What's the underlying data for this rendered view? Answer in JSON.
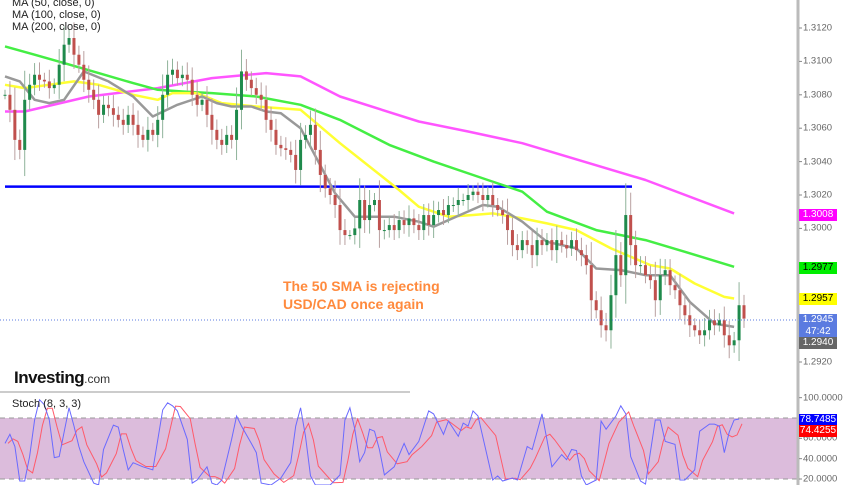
{
  "legend": {
    "ma50": "MA (50, close, 0)",
    "ma100": "MA (100, close, 0)",
    "ma200": "MA (200, close, 0)"
  },
  "annotation": {
    "line1": "The 50 SMA is rejecting",
    "line2": "USD/CAD once again"
  },
  "logo": {
    "name": "Investing",
    "suffix": ".com"
  },
  "stoch_label": "Stoch (8, 3, 3)",
  "price_ticks": [
    "1.3120",
    "1.3100",
    "1.3080",
    "1.3060",
    "1.3040",
    "1.3020",
    "1.3000",
    "1.2920"
  ],
  "price_labels": [
    {
      "text": "1.3008",
      "bg": "#ff00ff",
      "fg": "#ffffff"
    },
    {
      "text": "1.2977",
      "bg": "#00ee00",
      "fg": "#000000"
    },
    {
      "text": "1.2957",
      "bg": "#ffff00",
      "fg": "#000000"
    },
    {
      "text": "1.2945",
      "bg": "#5b7be0",
      "fg": "#ffffff"
    },
    {
      "text": "47:42",
      "bg": "#5b7be0",
      "fg": "#ffffff"
    },
    {
      "text": "1.2940",
      "bg": "#666666",
      "fg": "#ffffff"
    }
  ],
  "stoch_ticks": [
    "100.0000",
    "60.0000",
    "40.0000",
    "20.0000"
  ],
  "stoch_labels": [
    {
      "text": "78.7485",
      "bg": "#0000ff",
      "fg": "#ffffff"
    },
    {
      "text": "74.4255",
      "bg": "#ff0000",
      "fg": "#ffffff"
    }
  ],
  "chart_data": [
    {
      "type": "candlestick",
      "instrument": "USD/CAD",
      "ylim": [
        1.2913,
        1.3137
      ],
      "last_price": 1.2945,
      "horizontal_line": {
        "price": 1.3025,
        "color": "#0000ff"
      },
      "colors": {
        "up": "#1f8a4c",
        "down": "#c0504d",
        "ma50": "#ffff33",
        "ma100": "#44ee44",
        "ma200": "#ff55ff",
        "fast_ma": "#999999"
      },
      "closes": [
        1.308,
        1.3071,
        1.3053,
        1.3047,
        1.3077,
        1.3086,
        1.3092,
        1.3089,
        1.3088,
        1.3084,
        1.3086,
        1.3098,
        1.311,
        1.3114,
        1.3104,
        1.3098,
        1.3089,
        1.3083,
        1.3077,
        1.3068,
        1.3074,
        1.3072,
        1.3068,
        1.3065,
        1.3062,
        1.3068,
        1.3062,
        1.3056,
        1.3053,
        1.3059,
        1.3056,
        1.3065,
        1.308,
        1.3092,
        1.3095,
        1.309,
        1.3092,
        1.3089,
        1.308,
        1.3074,
        1.3077,
        1.3068,
        1.3059,
        1.3053,
        1.305,
        1.3056,
        1.3053,
        1.3071,
        1.3094,
        1.3089,
        1.3084,
        1.308,
        1.3077,
        1.3065,
        1.3059,
        1.305,
        1.3048,
        1.3047,
        1.3044,
        1.3035,
        1.3053,
        1.3056,
        1.3062,
        1.3047,
        1.3032,
        1.3024,
        1.302,
        1.3014,
        1.2999,
        1.2996,
        1.2996,
        1.3,
        1.3017,
        1.3005,
        1.3014,
        1.3017,
        1.2999,
        1.2999,
        1.3002,
        1.2999,
        1.3005,
        1.3002,
        1.3006,
        1.3002,
        1.2999,
        1.3008,
        1.3002,
        1.3008,
        1.3011,
        1.3008,
        1.3014,
        1.3014,
        1.3017,
        1.3017,
        1.302,
        1.3022,
        1.302,
        1.3017,
        1.302,
        1.3014,
        1.3011,
        1.3008,
        1.2999,
        1.299,
        1.2987,
        1.2993,
        1.299,
        1.2984,
        1.2993,
        1.299,
        1.2993,
        1.2987,
        1.2993,
        1.299,
        1.2988,
        1.2993,
        1.2987,
        1.2984,
        1.2978,
        1.2957,
        1.2951,
        1.2942,
        1.2939,
        1.296,
        1.2984,
        1.2972,
        1.3008,
        1.299,
        1.2978,
        1.2978,
        1.2972,
        1.2969,
        1.2957,
        1.2972,
        1.2975,
        1.2966,
        1.2963,
        1.2954,
        1.2948,
        1.2942,
        1.2939,
        1.2936,
        1.2939,
        1.2945,
        1.2942,
        1.2945,
        1.2936,
        1.293,
        1.2933,
        1.2954,
        1.2946
      ],
      "moving_averages": [
        {
          "name": "MA (200, close, 0)",
          "key": "ma200",
          "points": [
            [
              0,
              1.307
            ],
            [
              4,
              1.307
            ],
            [
              17,
              1.3079
            ],
            [
              31,
              1.3084
            ],
            [
              42,
              1.309
            ],
            [
              53,
              1.3093
            ],
            [
              60,
              1.3091
            ],
            [
              68,
              1.3079
            ],
            [
              84,
              1.3064
            ],
            [
              94,
              1.3058
            ],
            [
              105,
              1.3051
            ],
            [
              130,
              1.3029
            ],
            [
              148,
              1.3009
            ]
          ]
        },
        {
          "name": "MA (100, close, 0)",
          "key": "ma100",
          "points": [
            [
              0,
              1.3109
            ],
            [
              6,
              1.3104
            ],
            [
              12,
              1.3099
            ],
            [
              19,
              1.3093
            ],
            [
              26,
              1.3087
            ],
            [
              31,
              1.3083
            ],
            [
              36,
              1.3082
            ],
            [
              42,
              1.3081
            ],
            [
              51,
              1.3079
            ],
            [
              60,
              1.3074
            ],
            [
              68,
              1.3065
            ],
            [
              78,
              1.305
            ],
            [
              87,
              1.304
            ],
            [
              98,
              1.3029
            ],
            [
              105,
              1.3022
            ],
            [
              110,
              1.301
            ],
            [
              120,
              1.2999
            ],
            [
              130,
              1.2993
            ],
            [
              138,
              1.2986
            ],
            [
              148,
              1.2977
            ]
          ]
        },
        {
          "name": "MA (50, close, 0)",
          "key": "ma50",
          "points": [
            [
              0,
              1.3086
            ],
            [
              4,
              1.3084
            ],
            [
              9,
              1.3086
            ],
            [
              14,
              1.3088
            ],
            [
              19,
              1.3086
            ],
            [
              26,
              1.308
            ],
            [
              31,
              1.3077
            ],
            [
              34,
              1.3081
            ],
            [
              39,
              1.3081
            ],
            [
              44,
              1.3075
            ],
            [
              51,
              1.3073
            ],
            [
              60,
              1.3071
            ],
            [
              68,
              1.3051
            ],
            [
              74,
              1.3037
            ],
            [
              80,
              1.3023
            ],
            [
              84,
              1.3013
            ],
            [
              90,
              1.3007
            ],
            [
              95,
              1.3008
            ],
            [
              99,
              1.3009
            ],
            [
              105,
              1.3006
            ],
            [
              110,
              1.3003
            ],
            [
              116,
              1.2999
            ],
            [
              123,
              1.2988
            ],
            [
              131,
              1.2978
            ],
            [
              135,
              1.2976
            ],
            [
              140,
              1.2967
            ],
            [
              146,
              1.2959
            ],
            [
              148,
              1.2958
            ]
          ]
        },
        {
          "key": "fast_ma",
          "points": [
            [
              0,
              1.3091
            ],
            [
              3,
              1.3088
            ],
            [
              6,
              1.3077
            ],
            [
              9,
              1.3075
            ],
            [
              12,
              1.3077
            ],
            [
              16,
              1.3094
            ],
            [
              21,
              1.3088
            ],
            [
              26,
              1.3079
            ],
            [
              30,
              1.3067
            ],
            [
              35,
              1.3074
            ],
            [
              40,
              1.3079
            ],
            [
              43,
              1.3075
            ],
            [
              46,
              1.3073
            ],
            [
              50,
              1.3073
            ],
            [
              53,
              1.307
            ],
            [
              56,
              1.3069
            ],
            [
              60,
              1.306
            ],
            [
              67,
              1.3021
            ],
            [
              71,
              1.3007
            ],
            [
              79,
              1.3007
            ],
            [
              84,
              1.3004
            ],
            [
              87,
              1.3001
            ],
            [
              90,
              1.3005
            ],
            [
              97,
              1.3014
            ],
            [
              100,
              1.3013
            ],
            [
              105,
              1.3004
            ],
            [
              110,
              1.2992
            ],
            [
              116,
              1.2988
            ],
            [
              120,
              1.2976
            ],
            [
              125,
              1.2975
            ],
            [
              130,
              1.2972
            ],
            [
              135,
              1.2972
            ],
            [
              139,
              1.2956
            ],
            [
              144,
              1.2943
            ],
            [
              148,
              1.2941
            ]
          ]
        }
      ]
    },
    {
      "type": "line",
      "indicator": "Stoch (8, 3, 3)",
      "ylim": [
        20,
        100
      ],
      "band": [
        20,
        80
      ],
      "band_color": "#dcbcdc",
      "k_color": "#6a6aff",
      "d_color": "#ff5a6a",
      "k_last": 78.7485,
      "d_last": 74.4255,
      "k": [
        [
          0,
          55
        ],
        [
          1,
          64
        ],
        [
          2,
          52
        ],
        [
          3,
          18
        ],
        [
          4,
          18
        ],
        [
          5,
          42
        ],
        [
          6,
          78
        ],
        [
          7,
          98
        ],
        [
          8,
          93
        ],
        [
          9,
          78
        ],
        [
          10,
          41
        ],
        [
          11,
          42
        ],
        [
          13,
          90
        ],
        [
          14,
          72
        ],
        [
          15,
          52
        ],
        [
          16,
          37
        ],
        [
          18,
          16
        ],
        [
          19,
          13
        ],
        [
          20,
          49
        ],
        [
          22,
          73
        ],
        [
          23,
          71
        ],
        [
          24,
          49
        ],
        [
          25,
          29
        ],
        [
          26,
          36
        ],
        [
          28,
          32
        ],
        [
          30,
          29
        ],
        [
          32,
          88
        ],
        [
          33,
          95
        ],
        [
          34,
          92
        ],
        [
          35,
          87
        ],
        [
          37,
          59
        ],
        [
          38,
          16
        ],
        [
          39,
          19
        ],
        [
          41,
          32
        ],
        [
          42,
          16
        ],
        [
          43,
          13
        ],
        [
          44,
          19
        ],
        [
          46,
          59
        ],
        [
          47,
          82
        ],
        [
          48,
          72
        ],
        [
          50,
          55
        ],
        [
          51,
          46
        ],
        [
          52,
          16
        ],
        [
          54,
          13
        ],
        [
          56,
          21
        ],
        [
          58,
          36
        ],
        [
          59,
          72
        ],
        [
          60,
          90
        ],
        [
          61,
          62
        ],
        [
          62,
          23
        ],
        [
          63,
          13
        ],
        [
          66,
          13
        ],
        [
          68,
          24
        ],
        [
          69,
          78
        ],
        [
          70,
          90
        ],
        [
          71,
          69
        ],
        [
          72,
          37
        ],
        [
          73,
          46
        ],
        [
          74,
          69
        ],
        [
          75,
          67
        ],
        [
          76,
          49
        ],
        [
          77,
          24
        ],
        [
          79,
          32
        ],
        [
          81,
          55
        ],
        [
          82,
          44
        ],
        [
          84,
          57
        ],
        [
          86,
          87
        ],
        [
          87,
          84
        ],
        [
          89,
          64
        ],
        [
          90,
          77
        ],
        [
          92,
          62
        ],
        [
          93,
          75
        ],
        [
          94,
          72
        ],
        [
          95,
          87
        ],
        [
          96,
          82
        ],
        [
          99,
          19
        ],
        [
          100,
          23
        ],
        [
          101,
          18
        ],
        [
          103,
          21
        ],
        [
          104,
          19
        ],
        [
          106,
          52
        ],
        [
          107,
          49
        ],
        [
          109,
          84
        ],
        [
          110,
          59
        ],
        [
          111,
          32
        ],
        [
          113,
          44
        ],
        [
          114,
          39
        ],
        [
          115,
          49
        ],
        [
          116,
          48
        ],
        [
          117,
          23
        ],
        [
          118,
          13
        ],
        [
          120,
          19
        ],
        [
          121,
          77
        ],
        [
          122,
          69
        ],
        [
          124,
          82
        ],
        [
          125,
          92
        ],
        [
          126,
          84
        ],
        [
          127,
          42
        ],
        [
          129,
          18
        ],
        [
          130,
          15
        ],
        [
          132,
          78
        ],
        [
          133,
          78
        ],
        [
          134,
          57
        ],
        [
          136,
          54
        ],
        [
          137,
          19
        ],
        [
          138,
          19
        ],
        [
          140,
          29
        ],
        [
          141,
          67
        ],
        [
          143,
          74
        ],
        [
          144,
          74
        ],
        [
          145,
          72
        ],
        [
          146,
          46
        ],
        [
          147,
          66
        ],
        [
          148,
          78
        ],
        [
          149,
          79
        ]
      ]
    }
  ]
}
